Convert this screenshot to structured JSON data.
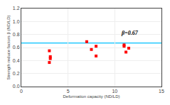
{
  "chart_data": {
    "type": "scatter",
    "xlabel": "Deformation capacity (ND/LD)",
    "ylabel": "Strength reduce factors β (ND/LD)",
    "x": [
      3.0,
      3.1,
      3.1,
      3.0,
      7.0,
      7.5,
      8.0,
      8.0,
      11.0,
      11.0,
      11.2,
      11.5
    ],
    "values": [
      0.55,
      0.46,
      0.43,
      0.37,
      0.69,
      0.57,
      0.62,
      0.47,
      0.64,
      0.62,
      0.53,
      0.59
    ],
    "color": "red",
    "marker": "square",
    "xlim": [
      0,
      15
    ],
    "ylim": [
      0.0,
      1.2
    ],
    "xticks": [
      0,
      5,
      10,
      15
    ],
    "yticks": [
      {
        "value": 0,
        "label": "0.0"
      },
      0.2,
      0.4,
      0.6,
      0.8,
      {
        "value": 1,
        "label": "1.0"
      },
      1.2
    ],
    "hline": {
      "y": 0.67,
      "color": "#00c0ff"
    },
    "annotations": [
      {
        "text": "β=0.67",
        "x": 10.5,
        "y": 0.75
      }
    ]
  }
}
